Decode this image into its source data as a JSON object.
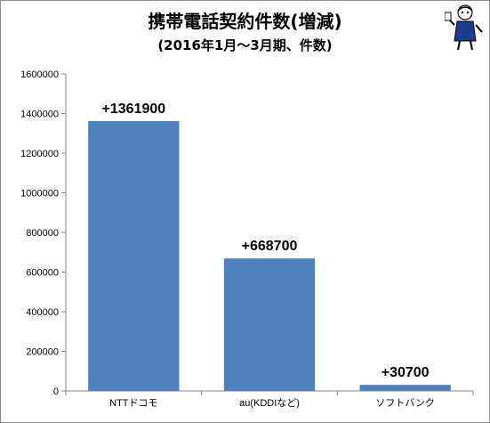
{
  "chart_data": {
    "type": "bar",
    "title": "携帯電話契約件数(増減)",
    "subtitle": "(2016年1月～3月期、件数)",
    "categories": [
      "NTTドコモ",
      "au(KDDIなど)",
      "ソフトバンク"
    ],
    "values": [
      1361900,
      668700,
      30700
    ],
    "data_labels": [
      "+1361900",
      "+668700",
      "+30700"
    ],
    "y_ticks": [
      "0",
      "200000",
      "400000",
      "600000",
      "800000",
      "1000000",
      "1200000",
      "1400000",
      "1600000"
    ],
    "ylim": [
      0,
      1600000
    ],
    "grid": false,
    "legend": "none",
    "bar_color": "#4f81bd"
  }
}
